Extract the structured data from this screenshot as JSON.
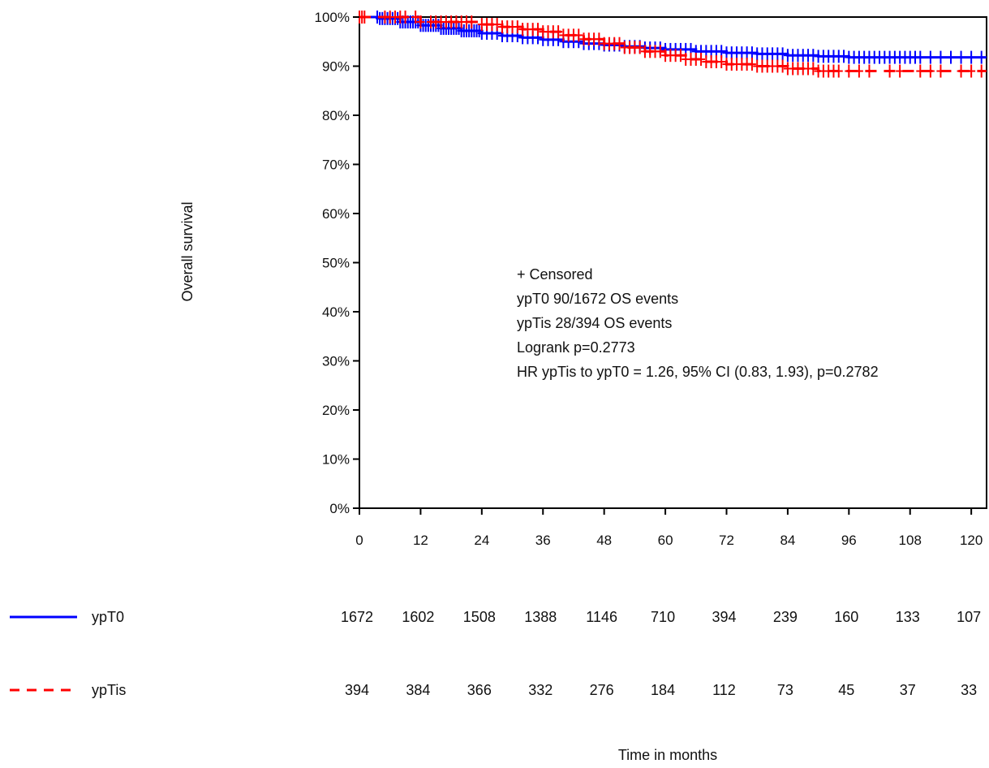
{
  "chart_data": {
    "type": "line",
    "subtype": "kaplan-meier",
    "title": "",
    "xlabel": "Time in months",
    "ylabel": "Overall survival",
    "xlim": [
      0,
      123
    ],
    "ylim": [
      0,
      1
    ],
    "x_ticks": [
      0,
      12,
      24,
      36,
      48,
      60,
      72,
      84,
      96,
      108,
      120
    ],
    "x_tick_labels": [
      "0",
      "12",
      "24",
      "36",
      "48",
      "60",
      "72",
      "84",
      "96",
      "108",
      "120"
    ],
    "y_ticks": [
      0,
      0.1,
      0.2,
      0.3,
      0.4,
      0.5,
      0.6,
      0.7,
      0.8,
      0.9,
      1.0
    ],
    "y_tick_labels": [
      "0%",
      "10%",
      "20%",
      "30%",
      "40%",
      "50%",
      "60%",
      "70%",
      "80%",
      "90%",
      "100%"
    ],
    "grid": false,
    "series": [
      {
        "name": "ypT0",
        "color": "#0000ff",
        "dash": "solid",
        "x": [
          0,
          4,
          8,
          12,
          16,
          20,
          24,
          28,
          32,
          36,
          40,
          44,
          48,
          52,
          56,
          60,
          66,
          72,
          78,
          84,
          90,
          96,
          123
        ],
        "y": [
          1.0,
          0.997,
          0.99,
          0.983,
          0.977,
          0.972,
          0.967,
          0.962,
          0.958,
          0.954,
          0.95,
          0.946,
          0.943,
          0.94,
          0.937,
          0.934,
          0.93,
          0.927,
          0.925,
          0.922,
          0.92,
          0.918,
          0.918
        ],
        "censor_x": [
          3.5,
          4,
          4.5,
          5,
          5.5,
          6,
          6.5,
          7,
          7.5,
          8,
          8.5,
          9,
          9.5,
          10,
          10.5,
          11,
          11.5,
          12,
          12.5,
          13,
          13.5,
          14,
          14.5,
          15,
          15.5,
          16,
          16.5,
          17,
          17.5,
          18,
          18.5,
          19,
          19.5,
          20,
          20.5,
          21,
          21.5,
          22,
          22.5,
          23,
          23.5,
          24,
          25,
          26,
          27,
          28,
          29,
          30,
          31,
          32,
          33,
          34,
          35,
          36,
          37,
          38,
          39,
          40,
          41,
          42,
          43,
          44,
          45,
          46,
          47,
          48,
          49,
          50,
          51,
          52,
          53,
          54,
          55,
          56,
          57,
          58,
          59,
          60,
          61,
          62,
          63,
          64,
          65,
          66,
          67,
          68,
          69,
          70,
          71,
          72,
          73,
          74,
          75,
          76,
          77,
          78,
          79,
          80,
          81,
          82,
          83,
          84,
          85,
          86,
          87,
          88,
          89,
          90,
          91,
          92,
          93,
          94,
          95,
          96,
          97,
          98,
          99,
          100,
          101,
          102,
          103,
          104,
          105,
          106,
          107,
          108,
          109,
          110,
          112,
          114,
          116,
          118,
          120,
          122
        ]
      },
      {
        "name": "ypTis",
        "color": "#ff0000",
        "dash": "dashed",
        "x": [
          0,
          12,
          24,
          28,
          32,
          36,
          40,
          44,
          48,
          52,
          56,
          60,
          64,
          68,
          72,
          78,
          84,
          90,
          123
        ],
        "y": [
          1.0,
          0.99,
          0.985,
          0.98,
          0.975,
          0.97,
          0.963,
          0.955,
          0.946,
          0.938,
          0.93,
          0.922,
          0.914,
          0.909,
          0.904,
          0.9,
          0.895,
          0.89,
          0.89
        ],
        "censor_x": [
          0,
          0.5,
          1,
          5,
          6,
          7,
          8,
          9,
          11,
          12,
          14,
          15,
          16,
          17,
          18,
          19,
          20,
          21,
          22,
          24,
          25,
          26,
          27,
          28,
          29,
          30,
          31,
          32,
          33,
          34,
          35,
          36,
          37,
          38,
          39,
          40,
          41,
          42,
          43,
          44,
          45,
          46,
          47,
          48,
          49,
          50,
          51,
          52,
          53,
          54,
          55,
          56,
          57,
          58,
          59,
          60,
          61,
          62,
          63,
          64,
          65,
          66,
          67,
          68,
          69,
          70,
          71,
          72,
          73,
          74,
          75,
          76,
          77,
          78,
          79,
          80,
          81,
          82,
          83,
          84,
          85,
          86,
          87,
          88,
          89,
          90,
          91,
          92,
          93,
          94,
          96,
          98,
          100,
          104,
          106,
          110,
          112,
          114,
          118,
          120,
          122
        ]
      }
    ],
    "annotations": [
      "+ Censored",
      "ypT0  90/1672 OS events",
      "ypTis  28/394 OS events",
      "Logrank p=0.2773",
      "HR ypTis to ypT0 = 1.26, 95% CI (0.83, 1.93),  p=0.2782"
    ],
    "risk_table": {
      "times": [
        0,
        12,
        24,
        36,
        48,
        60,
        72,
        84,
        96,
        108,
        120
      ],
      "rows": [
        {
          "name": "ypT0",
          "color": "#0000ff",
          "dash": "solid",
          "counts": [
            "1672",
            "1602",
            "1508",
            "1388",
            "1146",
            "710",
            "394",
            "239",
            "160",
            "133",
            "107"
          ]
        },
        {
          "name": "ypTis",
          "color": "#ff0000",
          "dash": "dashed",
          "counts": [
            "394",
            "384",
            "366",
            "332",
            "276",
            "184",
            "112",
            "73",
            "45",
            "37",
            "33"
          ]
        }
      ]
    }
  }
}
